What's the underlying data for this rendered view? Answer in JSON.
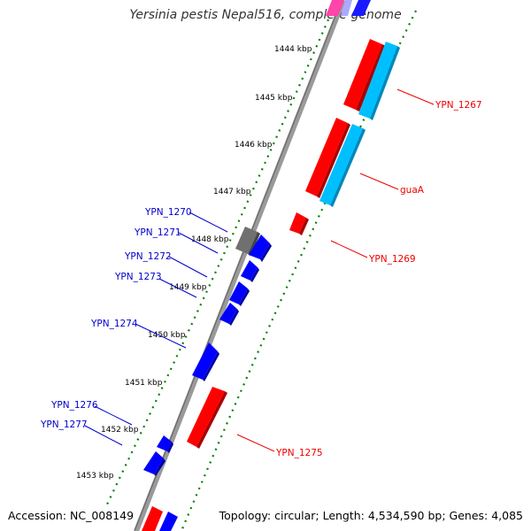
{
  "title": "Yersinia pestis Nepal516, complete genome",
  "accession": "Accession: NC_008149",
  "topology": "Topology: circular; Length: 4,534,590 bp; Genes: 4,085",
  "colors": {
    "backbone": "#808080",
    "forward_cds": "#0000ff",
    "reverse_cds": "#ff0000",
    "reverse_rna": "#00bfff",
    "other": "#6e6e6e",
    "tick": "#008000",
    "label_forward": "#0000cc",
    "label_reverse": "#ee0000"
  },
  "ticks": [
    "1444 kbp",
    "1445 kbp",
    "1446 kbp",
    "1447 kbp",
    "1448 kbp",
    "1449 kbp",
    "1450 kbp",
    "1451 kbp",
    "1452 kbp",
    "1453 kbp"
  ],
  "gene_labels": {
    "left": [
      "YPN_1270",
      "YPN_1271",
      "YPN_1272",
      "YPN_1273",
      "YPN_1274",
      "YPN_1276",
      "YPN_1277"
    ],
    "right": [
      "YPN_1267",
      "guaA",
      "YPN_1269",
      "YPN_1275"
    ]
  }
}
